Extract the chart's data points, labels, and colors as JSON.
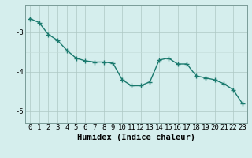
{
  "x": [
    0,
    1,
    2,
    3,
    4,
    5,
    6,
    7,
    8,
    9,
    10,
    11,
    12,
    13,
    14,
    15,
    16,
    17,
    18,
    19,
    20,
    21,
    22,
    23
  ],
  "y": [
    -2.65,
    -2.75,
    -3.05,
    -3.2,
    -3.45,
    -3.65,
    -3.72,
    -3.75,
    -3.75,
    -3.78,
    -4.2,
    -4.35,
    -4.35,
    -4.25,
    -3.7,
    -3.65,
    -3.8,
    -3.8,
    -4.1,
    -4.15,
    -4.2,
    -4.3,
    -4.45,
    -4.8
  ],
  "line_color": "#1a7a6e",
  "marker": "+",
  "markersize": 4,
  "linewidth": 1.0,
  "bg_color": "#d5eeed",
  "grid_color_major": "#adc8c4",
  "grid_color_minor": "#c2dbd8",
  "xlabel": "Humidex (Indice chaleur)",
  "xlabel_fontsize": 7.5,
  "yticks": [
    -3,
    -4,
    -5
  ],
  "ylim": [
    -5.3,
    -2.3
  ],
  "xlim": [
    -0.5,
    23.5
  ],
  "xticks": [
    0,
    1,
    2,
    3,
    4,
    5,
    6,
    7,
    8,
    9,
    10,
    11,
    12,
    13,
    14,
    15,
    16,
    17,
    18,
    19,
    20,
    21,
    22,
    23
  ],
  "tick_fontsize": 6.5
}
